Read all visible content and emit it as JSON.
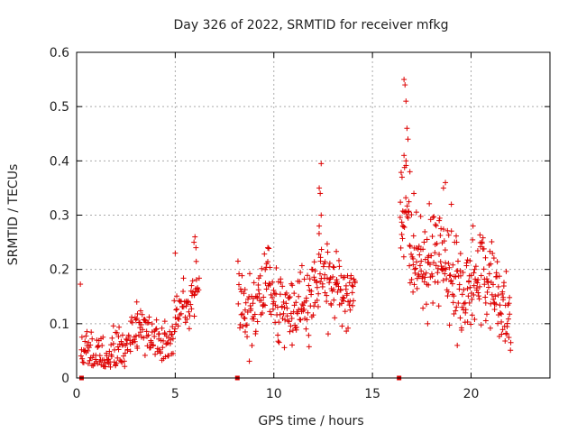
{
  "chart_data": {
    "type": "scatter",
    "title": "Day 326 of 2022, SRMTID for receiver mfkg",
    "xlabel": "GPS time / hours",
    "ylabel": "SRMTID / TECUs",
    "xlim": [
      0,
      24
    ],
    "ylim": [
      0,
      0.6
    ],
    "xticks": [
      0,
      5,
      10,
      15,
      20
    ],
    "xtick_labels": [
      "0",
      "5",
      "10",
      "15",
      "20"
    ],
    "yticks": [
      0,
      0.1,
      0.2,
      0.3,
      0.4,
      0.5,
      0.6
    ],
    "ytick_labels": [
      "0",
      "0.1",
      "0.2",
      "0.3",
      "0.4",
      "0.5",
      "0.6"
    ],
    "grid": true,
    "marker": "plus",
    "color": "#dd0000",
    "series": [
      {
        "name": "SRMTID",
        "segments": [
          {
            "start": 0.2,
            "end": 6.2,
            "step": 0.05,
            "profile": [
              [
                0.2,
                0.06
              ],
              [
                0.5,
                0.045
              ],
              [
                1.0,
                0.04
              ],
              [
                1.6,
                0.035
              ],
              [
                2.0,
                0.045
              ],
              [
                2.5,
                0.05
              ],
              [
                2.9,
                0.08
              ],
              [
                3.2,
                0.1
              ],
              [
                3.5,
                0.08
              ],
              [
                4.0,
                0.07
              ],
              [
                4.5,
                0.07
              ],
              [
                4.8,
                0.06
              ],
              [
                5.0,
                0.1
              ],
              [
                5.3,
                0.15
              ],
              [
                5.6,
                0.13
              ],
              [
                5.9,
                0.15
              ],
              [
                6.2,
                0.17
              ]
            ],
            "spread": 0.022
          },
          {
            "start": 8.2,
            "end": 14.1,
            "step": 0.045,
            "profile": [
              [
                8.2,
                0.15
              ],
              [
                8.6,
                0.12
              ],
              [
                9.0,
                0.14
              ],
              [
                9.5,
                0.16
              ],
              [
                10.0,
                0.15
              ],
              [
                10.3,
                0.13
              ],
              [
                10.8,
                0.11
              ],
              [
                11.2,
                0.13
              ],
              [
                11.7,
                0.15
              ],
              [
                12.2,
                0.18
              ],
              [
                12.5,
                0.19
              ],
              [
                13.0,
                0.18
              ],
              [
                13.5,
                0.14
              ],
              [
                14.1,
                0.17
              ]
            ],
            "spread": 0.035
          },
          {
            "start": 16.4,
            "end": 22.0,
            "step": 0.04,
            "profile": [
              [
                16.4,
                0.31
              ],
              [
                16.8,
                0.28
              ],
              [
                17.0,
                0.22
              ],
              [
                17.5,
                0.2
              ],
              [
                18.0,
                0.22
              ],
              [
                18.5,
                0.22
              ],
              [
                19.0,
                0.18
              ],
              [
                19.5,
                0.16
              ],
              [
                20.0,
                0.18
              ],
              [
                20.5,
                0.2
              ],
              [
                21.0,
                0.16
              ],
              [
                21.5,
                0.13
              ],
              [
                22.0,
                0.1
              ]
            ],
            "spread": 0.04
          }
        ],
        "spikes": [
          [
            16.6,
            0.55
          ],
          [
            16.65,
            0.54
          ],
          [
            16.7,
            0.51
          ],
          [
            16.75,
            0.46
          ],
          [
            16.8,
            0.44
          ],
          [
            16.6,
            0.41
          ],
          [
            16.7,
            0.4
          ],
          [
            16.9,
            0.38
          ],
          [
            12.4,
            0.395
          ],
          [
            12.3,
            0.35
          ],
          [
            12.35,
            0.34
          ],
          [
            12.4,
            0.3
          ],
          [
            12.3,
            0.28
          ],
          [
            5.0,
            0.23
          ],
          [
            6.0,
            0.26
          ],
          [
            5.95,
            0.25
          ],
          [
            6.05,
            0.24
          ],
          [
            18.7,
            0.36
          ],
          [
            18.6,
            0.35
          ],
          [
            19.0,
            0.32
          ],
          [
            20.1,
            0.28
          ],
          [
            16.5,
            0.37
          ],
          [
            17.1,
            0.34
          ],
          [
            3.05,
            0.14
          ],
          [
            9.7,
            0.24
          ],
          [
            19.3,
            0.06
          ],
          [
            17.8,
            0.1
          ]
        ],
        "baseline_marks": [
          0.25,
          8.15,
          16.35
        ]
      }
    ]
  }
}
